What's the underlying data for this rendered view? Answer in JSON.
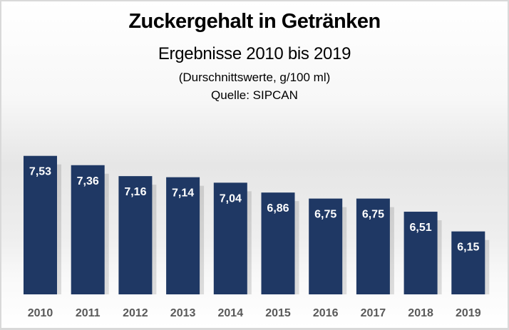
{
  "chart_data": {
    "type": "bar",
    "title": "Zuckergehalt in Getränken",
    "subtitle": "Ergebnisse 2010 bis 2019",
    "unit_note": "(Durschnittswerte, g/100 ml)",
    "source": "Quelle: SIPCAN",
    "categories": [
      "2010",
      "2011",
      "2012",
      "2013",
      "2014",
      "2015",
      "2016",
      "2017",
      "2018",
      "2019"
    ],
    "values": [
      7.53,
      7.36,
      7.16,
      7.14,
      7.04,
      6.86,
      6.75,
      6.75,
      6.51,
      6.15
    ],
    "value_labels": [
      "7,53",
      "7,36",
      "7,16",
      "7,14",
      "7,04",
      "6,86",
      "6,75",
      "6,75",
      "6,51",
      "6,15"
    ],
    "xlabel": "",
    "ylabel": "",
    "ylim": [
      5,
      7.53
    ],
    "grid": false,
    "legend": "none",
    "colors": {
      "bar": "#1f3864",
      "bar_label": "#ffffff",
      "axis_label": "#595959"
    }
  }
}
